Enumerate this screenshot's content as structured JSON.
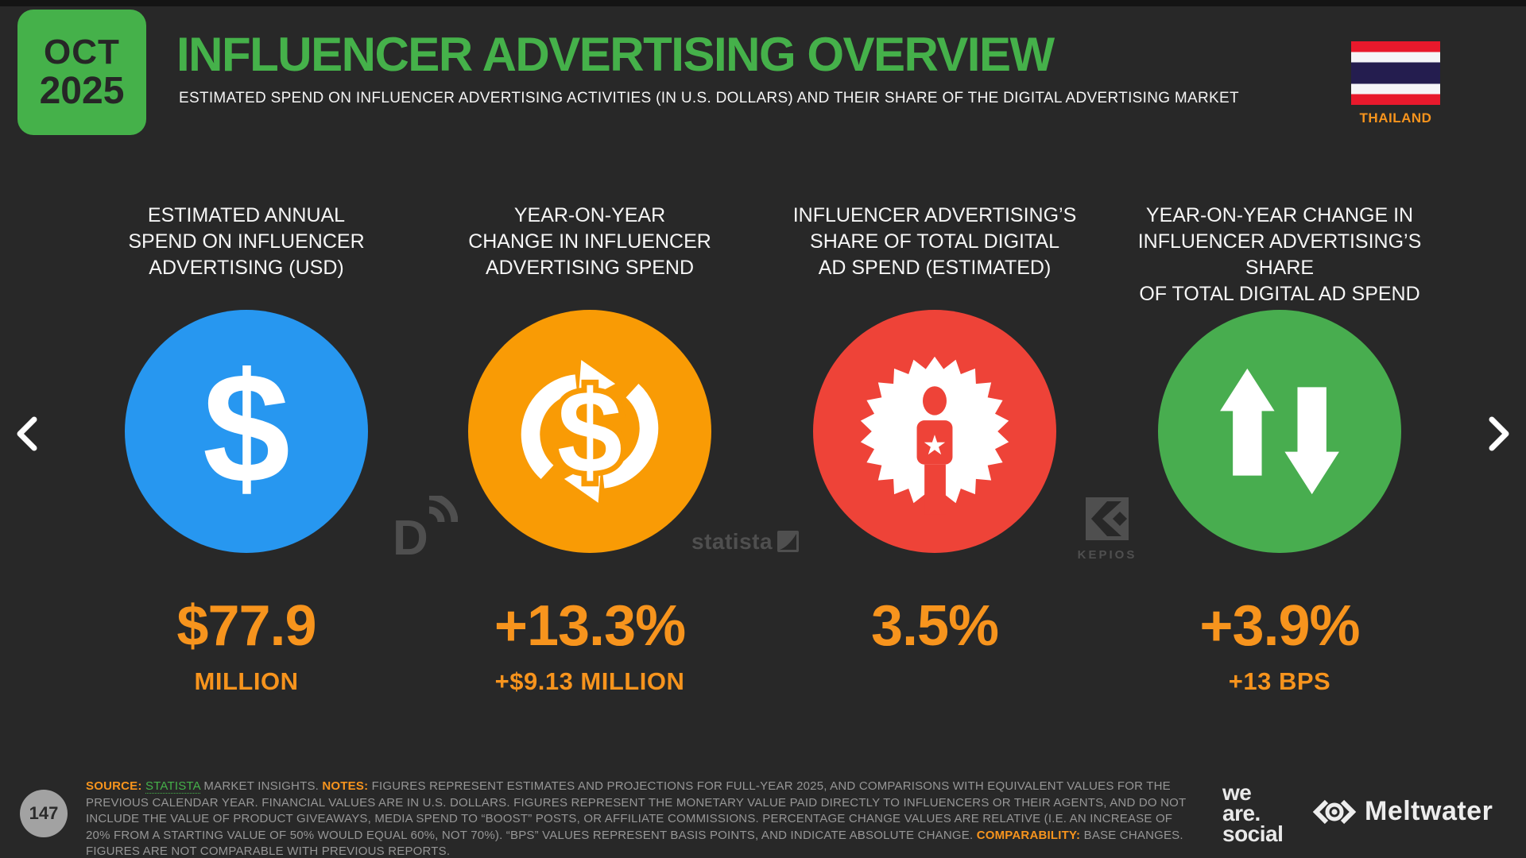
{
  "colors": {
    "green": "#45B14A",
    "orange": "#F7941D",
    "background": "#282828"
  },
  "header": {
    "badge_month": "OCT",
    "badge_year": "2025",
    "title": "INFLUENCER ADVERTISING OVERVIEW",
    "subtitle": "ESTIMATED SPEND ON INFLUENCER ADVERTISING ACTIVITIES (IN U.S. DOLLARS) AND THEIR SHARE OF THE DIGITAL ADVERTISING MARKET",
    "country": "THAILAND"
  },
  "stats": [
    {
      "label": "ESTIMATED ANNUAL\nSPEND ON INFLUENCER\nADVERTISING (USD)",
      "icon": "dollar-icon",
      "circle_color": "#2797F0",
      "value": "$77.9",
      "subvalue": "MILLION"
    },
    {
      "label": "YEAR-ON-YEAR\nCHANGE IN INFLUENCER\nADVERTISING SPEND",
      "icon": "dollar-cycle-icon",
      "circle_color": "#F99B05",
      "value": "+13.3%",
      "subvalue": "+$9.13 MILLION"
    },
    {
      "label": "INFLUENCER ADVERTISING’S\nSHARE OF TOTAL DIGITAL\nAD SPEND (ESTIMATED)",
      "icon": "person-badge-icon",
      "circle_color": "#EE4338",
      "value": "3.5%",
      "subvalue": ""
    },
    {
      "label": "YEAR-ON-YEAR CHANGE IN\nINFLUENCER ADVERTISING’S SHARE\nOF TOTAL DIGITAL AD SPEND",
      "icon": "up-down-arrows-icon",
      "circle_color": "#48AD4F",
      "value": "+3.9%",
      "subvalue": "+13 BPS"
    }
  ],
  "watermarks": {
    "statista": "statista",
    "kepios": "KEPIOS"
  },
  "footer": {
    "page_number": "147",
    "source_label": "SOURCE: ",
    "source_link": "STATISTA",
    "source_after": " MARKET INSIGHTS. ",
    "notes_label": "NOTES: ",
    "notes_text": "FIGURES REPRESENT ESTIMATES AND PROJECTIONS FOR FULL-YEAR 2025, AND COMPARISONS WITH EQUIVALENT VALUES FOR THE PREVIOUS CALENDAR YEAR. FINANCIAL VALUES ARE IN U.S. DOLLARS. FIGURES REPRESENT THE MONETARY VALUE PAID DIRECTLY TO INFLUENCERS OR THEIR AGENTS, AND DO NOT INCLUDE THE VALUE OF PRODUCT GIVEAWAYS, MEDIA SPEND TO “BOOST” POSTS, OR AFFILIATE COMMISSIONS. PERCENTAGE CHANGE VALUES ARE RELATIVE (I.E. AN INCREASE OF 20% FROM A STARTING VALUE OF 50% WOULD EQUAL 60%, NOT 70%). “BPS” VALUES REPRESENT BASIS POINTS, AND INDICATE ABSOLUTE CHANGE. ",
    "comparability_label": "COMPARABILITY: ",
    "comparability_text": "BASE CHANGES. FIGURES ARE NOT COMPARABLE WITH PREVIOUS REPORTS."
  },
  "logos": {
    "we_are_social_line1": "we",
    "we_are_social_line2": "are.",
    "we_are_social_line3": "social",
    "meltwater": "Meltwater"
  },
  "chart_data": {
    "type": "table",
    "title": "INFLUENCER ADVERTISING OVERVIEW",
    "region": "THAILAND",
    "date": "OCT 2025",
    "metrics": [
      {
        "label": "ESTIMATED ANNUAL SPEND ON INFLUENCER ADVERTISING (USD)",
        "value": "$77.9 MILLION"
      },
      {
        "label": "YEAR-ON-YEAR CHANGE IN INFLUENCER ADVERTISING SPEND",
        "value": "+13.3%",
        "detail": "+$9.13 MILLION"
      },
      {
        "label": "INFLUENCER ADVERTISING’S SHARE OF TOTAL DIGITAL AD SPEND (ESTIMATED)",
        "value": "3.5%"
      },
      {
        "label": "YEAR-ON-YEAR CHANGE IN INFLUENCER ADVERTISING’S SHARE OF TOTAL DIGITAL AD SPEND",
        "value": "+3.9%",
        "detail": "+13 BPS"
      }
    ]
  }
}
